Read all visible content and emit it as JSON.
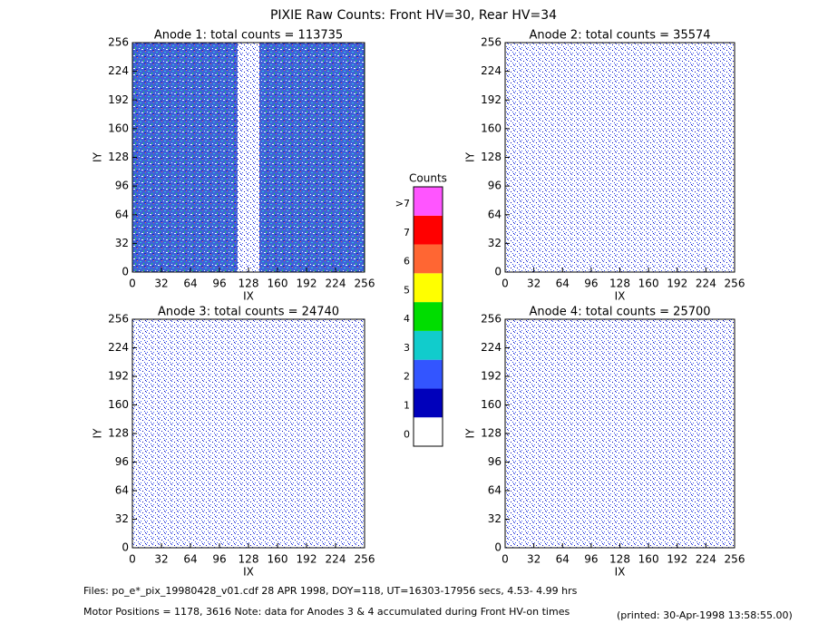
{
  "title": "PIXIE Raw Counts:  Front HV=30, Rear HV=34",
  "chart_data": [
    {
      "type": "heatmap",
      "title": "Anode 1: total counts = 113735",
      "xlabel": "IX",
      "ylabel": "IY",
      "xlim": [
        0,
        256
      ],
      "ylim": [
        0,
        256
      ],
      "xticks": [
        0,
        32,
        64,
        96,
        128,
        160,
        192,
        224,
        256
      ],
      "yticks": [
        0,
        32,
        64,
        96,
        128,
        160,
        192,
        224,
        256
      ]
    },
    {
      "type": "heatmap",
      "title": "Anode 2: total counts = 35574",
      "xlabel": "IX",
      "ylabel": "IY",
      "xlim": [
        0,
        256
      ],
      "ylim": [
        0,
        256
      ],
      "xticks": [
        0,
        32,
        64,
        96,
        128,
        160,
        192,
        224,
        256
      ],
      "yticks": [
        0,
        32,
        64,
        96,
        128,
        160,
        192,
        224,
        256
      ]
    },
    {
      "type": "heatmap",
      "title": "Anode 3: total counts = 24740",
      "xlabel": "IX",
      "ylabel": "IY",
      "xlim": [
        0,
        256
      ],
      "ylim": [
        0,
        256
      ],
      "xticks": [
        0,
        32,
        64,
        96,
        128,
        160,
        192,
        224,
        256
      ],
      "yticks": [
        0,
        32,
        64,
        96,
        128,
        160,
        192,
        224,
        256
      ]
    },
    {
      "type": "heatmap",
      "title": "Anode 4: total counts = 25700",
      "xlabel": "IX",
      "ylabel": "IY",
      "xlim": [
        0,
        256
      ],
      "ylim": [
        0,
        256
      ],
      "xticks": [
        0,
        32,
        64,
        96,
        128,
        160,
        192,
        224,
        256
      ],
      "yticks": [
        0,
        32,
        64,
        96,
        128,
        160,
        192,
        224,
        256
      ]
    }
  ],
  "colorbar": {
    "title": "Counts",
    "labels": [
      "0",
      "1",
      "2",
      "3",
      "4",
      "5",
      "6",
      "7",
      ">7"
    ],
    "colors": [
      "#ffffff",
      "#0000bb",
      "#3355ff",
      "#11cccc",
      "#00dd00",
      "#ffff00",
      "#ff6633",
      "#ff0000",
      "#ff55ff"
    ]
  },
  "footer": {
    "files": "Files: po_e*_pix_19980428_v01.cdf    28 APR 1998, DOY=118, UT=16303-17956 secs,  4.53- 4.99 hrs",
    "motor": "Motor Positions = 1178, 3616   Note: data for Anodes 3 & 4 accumulated during Front HV-on times",
    "printed": "(printed: 30-Apr-1998 13:58:55.00)"
  }
}
